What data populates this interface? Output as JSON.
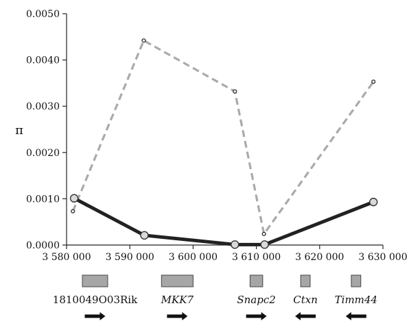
{
  "chart_data": {
    "type": "line",
    "ylabel": "π",
    "xlabel": "",
    "xlim": [
      3580000,
      3630000
    ],
    "ylim": [
      0,
      0.005
    ],
    "x_ticks": [
      3580000,
      3590000,
      3600000,
      3610000,
      3620000,
      3630000
    ],
    "x_tick_labels": [
      "3 580 000",
      "3 590 000",
      "3 600 000",
      "3 610 000",
      "3 620 000",
      "3 630 000"
    ],
    "y_ticks": [
      0,
      0.001,
      0.002,
      0.003,
      0.004,
      0.005
    ],
    "y_tick_labels": [
      "0.0000",
      "0.0010",
      "0.0020",
      "0.0030",
      "0.0040",
      "0.0050"
    ],
    "grid": false,
    "legend": false,
    "series": [
      {
        "style": "solid-thick",
        "color": "#222222",
        "marker_fill": "#d9d9d9",
        "x": [
          3581200,
          3592300,
          3606600,
          3611300,
          3628500
        ],
        "y": [
          0.00101,
          0.00021,
          1e-05,
          1e-05,
          0.00093
        ]
      },
      {
        "style": "dashed",
        "color": "#aaaaaa",
        "marker_fill": "#ffffff",
        "x": [
          3581000,
          3592200,
          3606600,
          3611200,
          3628500
        ],
        "y": [
          0.00073,
          0.00442,
          0.00332,
          0.00024,
          0.00353
        ]
      }
    ],
    "genes": [
      {
        "name": "1810049O03Rik",
        "start": 3582500,
        "end": 3586500,
        "direction": "right",
        "italic": false
      },
      {
        "name": "MKK7",
        "start": 3595000,
        "end": 3600000,
        "direction": "right",
        "italic": true
      },
      {
        "name": "Snapc2",
        "start": 3609000,
        "end": 3611000,
        "direction": "right",
        "italic": true
      },
      {
        "name": "Ctxn",
        "start": 3617000,
        "end": 3618500,
        "direction": "left",
        "italic": true
      },
      {
        "name": "Timm44",
        "start": 3625000,
        "end": 3626500,
        "direction": "left",
        "italic": true
      }
    ]
  }
}
